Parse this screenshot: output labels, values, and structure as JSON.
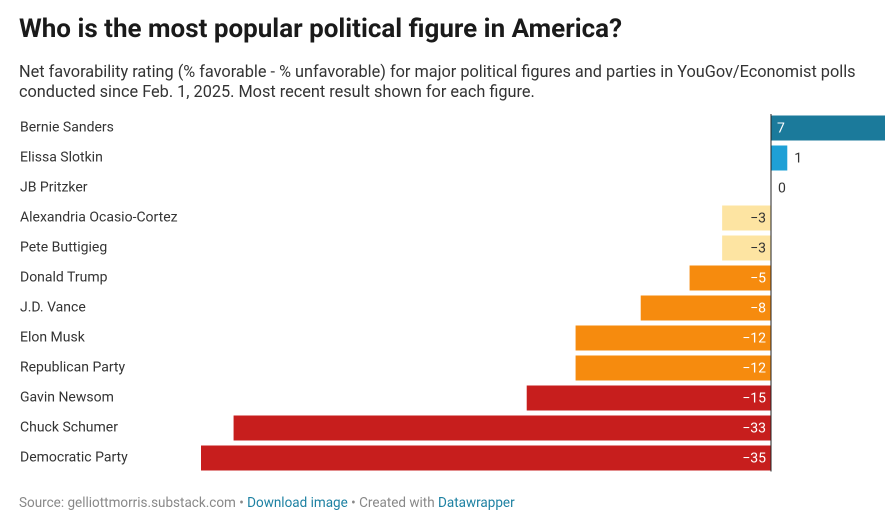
{
  "chart_data": {
    "type": "bar",
    "orientation": "horizontal",
    "title": "Who is the most popular political figure in America?",
    "subtitle": "Net favorability rating (% favorable - % unfavorable) for major political figures and parties in YouGov/Economist polls conducted since Feb. 1, 2025. Most recent result shown for each figure.",
    "categories": [
      "Bernie Sanders",
      "Elissa Slotkin",
      "JB Pritzker",
      "Alexandria Ocasio-Cortez",
      "Pete Buttigieg",
      "Donald Trump",
      "J.D. Vance",
      "Elon Musk",
      "Republican Party",
      "Gavin Newsom",
      "Chuck Schumer",
      "Democratic Party"
    ],
    "values": [
      7,
      1,
      0,
      -3,
      -3,
      -5,
      -8,
      -12,
      -12,
      -15,
      -33,
      -35
    ],
    "value_labels": [
      "7",
      "1",
      "0",
      "−3",
      "−3",
      "−5",
      "−8",
      "−12",
      "−12",
      "−15",
      "−33",
      "−35"
    ],
    "colors": [
      "#1b7a9b",
      "#1ea0d6",
      "#1ea0d6",
      "#fde4a2",
      "#fde4a2",
      "#f68b0e",
      "#f68b0e",
      "#f68b0e",
      "#f68b0e",
      "#c71e1d",
      "#c71e1d",
      "#c71e1d"
    ],
    "xlim": [
      -35,
      7
    ],
    "source": "Source: gelliottmorris.substack.com",
    "separator": "•",
    "download": "Download image",
    "credit": "Created with",
    "credit_link": "Datawrapper"
  }
}
